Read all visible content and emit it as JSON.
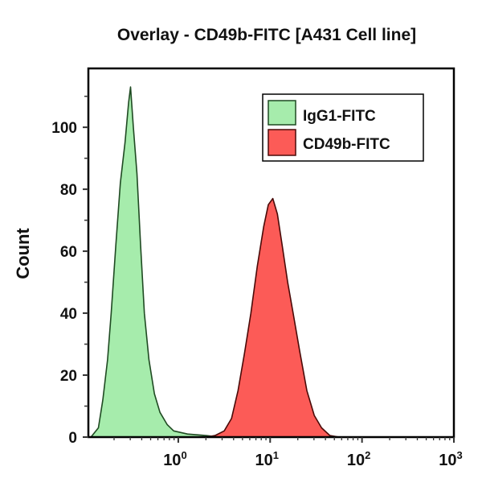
{
  "chart_data": {
    "type": "area",
    "title": "Overlay - CD49b-FITC [A431 Cell line]",
    "xlabel": "",
    "ylabel": "Count",
    "x_scale": "log",
    "xlim": [
      0.105,
      1000
    ],
    "ylim": [
      0,
      119
    ],
    "x_ticks": [
      {
        "value": 1,
        "base": "10",
        "exp": "0"
      },
      {
        "value": 10,
        "base": "10",
        "exp": "1"
      },
      {
        "value": 100,
        "base": "10",
        "exp": "2"
      },
      {
        "value": 1000,
        "base": "10",
        "exp": "3"
      }
    ],
    "y_ticks": [
      0,
      20,
      40,
      60,
      80,
      100
    ],
    "grid": false,
    "legend_position": "top-right",
    "series": [
      {
        "name": "IgG1-FITC",
        "fill": "#a6ecac",
        "stroke": "#1f4a22",
        "x": [
          0.112,
          0.135,
          0.151,
          0.17,
          0.186,
          0.209,
          0.234,
          0.263,
          0.288,
          0.302,
          0.324,
          0.355,
          0.389,
          0.427,
          0.479,
          0.55,
          0.631,
          0.759,
          0.891,
          1.26,
          2.0,
          2.82
        ],
        "y": [
          0,
          3,
          12,
          25,
          40,
          62,
          82,
          95,
          108,
          113,
          100,
          85,
          62,
          40,
          25,
          14,
          8,
          4,
          2,
          1,
          0.5,
          0
        ]
      },
      {
        "name": "CD49b-FITC",
        "fill": "#fc5b57",
        "stroke": "#4a0a08",
        "x": [
          2.0,
          2.51,
          3.16,
          3.8,
          4.47,
          5.25,
          6.17,
          7.24,
          8.51,
          9.55,
          10.7,
          12.0,
          13.5,
          15.5,
          17.8,
          20.9,
          25.1,
          30.2,
          36.3,
          44.7,
          56.2
        ],
        "y": [
          0,
          0.5,
          2,
          6,
          15,
          27,
          40,
          55,
          68,
          75,
          77,
          72,
          62,
          50,
          40,
          28,
          15,
          7,
          3,
          0.5,
          0
        ]
      }
    ]
  }
}
